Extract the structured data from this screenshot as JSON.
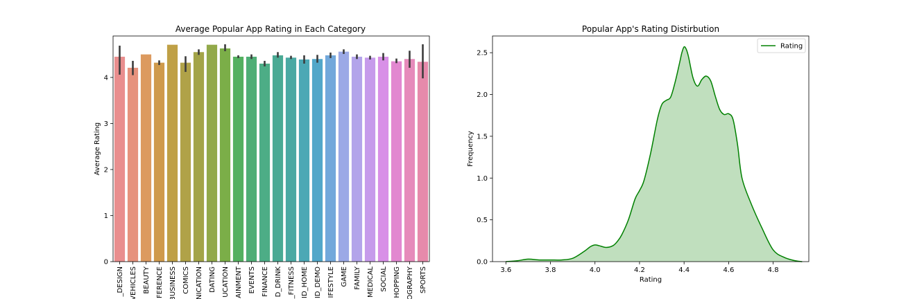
{
  "chart_data": [
    {
      "type": "bar",
      "title": "Average Popular App Rating in Each Category",
      "xlabel": "",
      "ylabel": "Average Rating",
      "ylim": [
        0,
        4.9
      ],
      "yticks": [
        0,
        1,
        2,
        3,
        4
      ],
      "categories": [
        "_DESIGN",
        "VEHICLES",
        "BEAUTY",
        "FERENCE",
        "BUSINESS",
        "COMICS",
        "NICATION",
        "DATING",
        "UCATION",
        "AINMENT",
        "EVENTS",
        "FINANCE",
        "D_DRINK",
        "_FITNESS",
        "ID_HOME",
        "ID_DEMO",
        "IFESTYLE",
        "GAME",
        "FAMILY",
        "MEDICAL",
        "SOCIAL",
        "HOPPING",
        "OGRAPHY",
        "SPORTS"
      ],
      "values": [
        4.45,
        4.21,
        4.5,
        4.32,
        4.71,
        4.32,
        4.55,
        4.71,
        4.63,
        4.45,
        4.45,
        4.3,
        4.48,
        4.43,
        4.39,
        4.4,
        4.48,
        4.56,
        4.45,
        4.43,
        4.45,
        4.35,
        4.4,
        4.34
      ],
      "error": [
        [
          4.06,
          4.69
        ],
        [
          4.05,
          4.36
        ],
        null,
        [
          4.27,
          4.37
        ],
        null,
        [
          4.12,
          4.46
        ],
        [
          4.49,
          4.61
        ],
        null,
        [
          4.57,
          4.72
        ],
        [
          4.42,
          4.48
        ],
        [
          4.4,
          4.5
        ],
        [
          4.24,
          4.36
        ],
        [
          4.43,
          4.55
        ],
        [
          4.4,
          4.47
        ],
        [
          4.3,
          4.48
        ],
        [
          4.32,
          4.49
        ],
        [
          4.42,
          4.54
        ],
        [
          4.51,
          4.61
        ],
        [
          4.4,
          4.5
        ],
        [
          4.39,
          4.47
        ],
        [
          4.37,
          4.53
        ],
        [
          4.31,
          4.41
        ],
        [
          4.21,
          4.58
        ],
        [
          3.98,
          4.72
        ]
      ],
      "colors": [
        "#e98e8e",
        "#e6927d",
        "#dc9a5f",
        "#cf9a4c",
        "#bfa046",
        "#b0a248",
        "#a3a448",
        "#92a94a",
        "#7bae48",
        "#54b060",
        "#4fae76",
        "#4dad86",
        "#4aaa94",
        "#4ba9a3",
        "#4ca8b5",
        "#52a7c9",
        "#72a8db",
        "#9ba9e6",
        "#b3a4ea",
        "#c69beb",
        "#d890e7",
        "#e288d0",
        "#e68bbb",
        "#e68aab"
      ],
      "grid": false
    },
    {
      "type": "area",
      "title": "Popular App's Rating Distirbution",
      "xlabel": "Rating",
      "ylabel": "Frequency",
      "xlim": [
        3.54,
        4.96
      ],
      "ylim": [
        0,
        2.7
      ],
      "xticks": [
        3.6,
        3.8,
        4.0,
        4.2,
        4.4,
        4.6,
        4.8
      ],
      "yticks": [
        0.0,
        0.5,
        1.0,
        1.5,
        2.0,
        2.5
      ],
      "legend": "top-right",
      "series": [
        {
          "name": "Rating",
          "color": "#008000",
          "fill": "#c0dfbe",
          "x": [
            3.6,
            3.65,
            3.7,
            3.75,
            3.8,
            3.85,
            3.9,
            3.95,
            3.98,
            4.0,
            4.02,
            4.05,
            4.08,
            4.1,
            4.12,
            4.15,
            4.18,
            4.2,
            4.22,
            4.25,
            4.28,
            4.3,
            4.32,
            4.34,
            4.36,
            4.38,
            4.39,
            4.4,
            4.41,
            4.42,
            4.44,
            4.46,
            4.48,
            4.5,
            4.52,
            4.54,
            4.56,
            4.58,
            4.6,
            4.62,
            4.64,
            4.66,
            4.7,
            4.75,
            4.8,
            4.85,
            4.9,
            4.93
          ],
          "y": [
            0.0,
            0.01,
            0.03,
            0.02,
            0.02,
            0.02,
            0.04,
            0.12,
            0.18,
            0.2,
            0.19,
            0.17,
            0.19,
            0.24,
            0.32,
            0.5,
            0.75,
            0.85,
            0.97,
            1.3,
            1.7,
            1.88,
            1.93,
            1.97,
            2.15,
            2.38,
            2.5,
            2.57,
            2.54,
            2.45,
            2.2,
            2.1,
            2.18,
            2.22,
            2.16,
            1.98,
            1.82,
            1.76,
            1.77,
            1.7,
            1.4,
            1.0,
            0.7,
            0.4,
            0.14,
            0.05,
            0.01,
            0.0
          ]
        }
      ]
    }
  ]
}
